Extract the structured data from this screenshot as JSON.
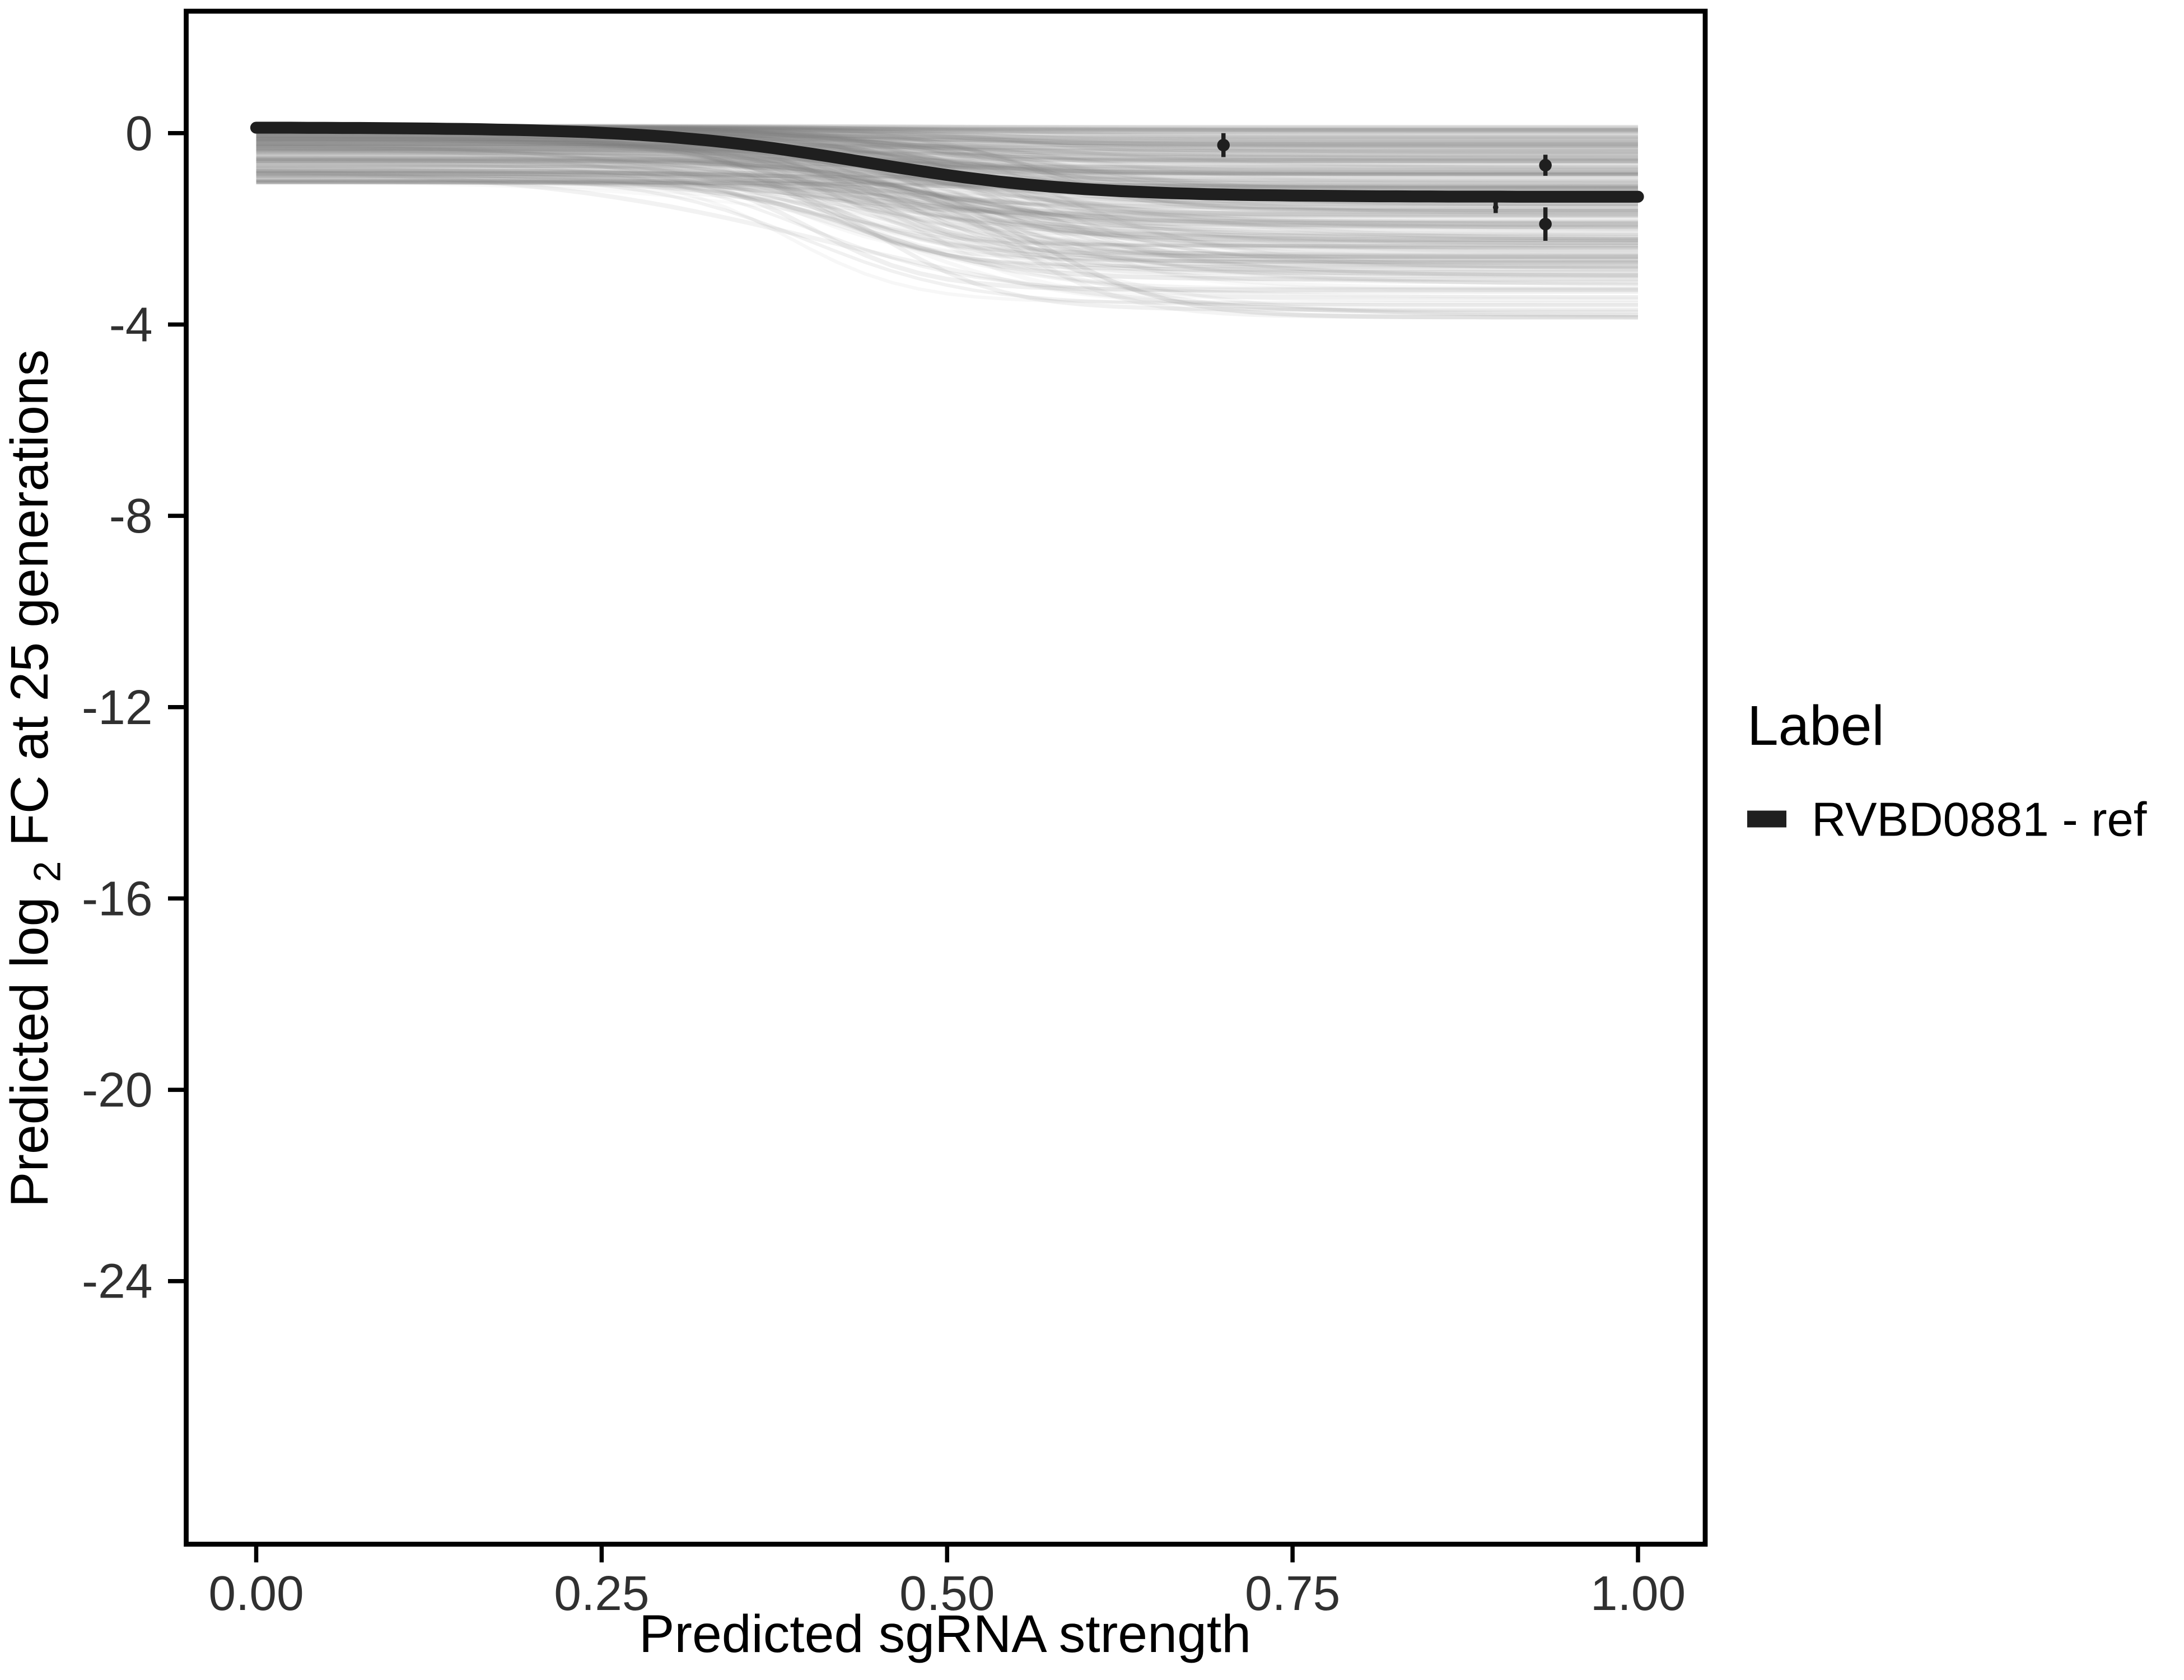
{
  "chart_data": {
    "type": "line",
    "title": "",
    "xlabel": "Predicted sgRNA strength",
    "ylabel": {
      "prefix": "Predicted  log",
      "sub": "2",
      "suffix": " FC at 25 generations"
    },
    "x_ticks": [
      "0.00",
      "0.25",
      "0.50",
      "0.75",
      "1.00"
    ],
    "x_tick_values": [
      0,
      0.25,
      0.5,
      0.75,
      1.0
    ],
    "y_ticks": [
      "0",
      "-4",
      "-8",
      "-12",
      "-16",
      "-20",
      "-24"
    ],
    "y_tick_values": [
      0,
      -4,
      -8,
      -12,
      -16,
      -20,
      -24
    ],
    "xlim": [
      0,
      1
    ],
    "ylim": [
      -29.5,
      2.55
    ],
    "grid": "off",
    "legend_position": "right",
    "series": [
      {
        "name": "RVBD0881 - ref",
        "color": "#1f1f1f",
        "width": 8.5,
        "sigmoid": {
          "start": 0.12,
          "depth": 1.45,
          "midpoint": 0.44,
          "steepness": 13
        },
        "x": [
          0,
          0.1,
          0.2,
          0.3,
          0.4,
          0.5,
          0.6,
          0.7,
          0.8,
          0.9,
          1.0
        ],
        "y": [
          0.11,
          0.1,
          0.06,
          -0.08,
          -0.42,
          -0.87,
          -1.17,
          -1.28,
          -1.32,
          -1.33,
          -1.33
        ]
      }
    ],
    "background_ensemble": {
      "count": 300,
      "seed": 42,
      "color": "#808080",
      "start_range": [
        -1.05,
        0.15
      ],
      "depth_max": 3.2,
      "midpoint_range": [
        0.38,
        0.58
      ],
      "steepness_range": [
        9,
        25
      ],
      "final_min": -3.85
    },
    "points": [
      {
        "x": 0.7,
        "y": -0.25,
        "err": 0.25,
        "r": 4.5
      },
      {
        "x": 0.933,
        "y": -0.67,
        "err": 0.22,
        "r": 4.5
      },
      {
        "x": 0.897,
        "y": -1.55,
        "err": 0.12,
        "r": 2.0
      },
      {
        "x": 0.933,
        "y": -1.9,
        "err": 0.35,
        "r": 4.5
      }
    ],
    "legend": {
      "title": "Label",
      "entries": [
        {
          "label": "RVBD0881 - ref",
          "color": "#1f1f1f"
        }
      ]
    },
    "axis_color": "#000000",
    "text_color": "#1a1a1a"
  }
}
